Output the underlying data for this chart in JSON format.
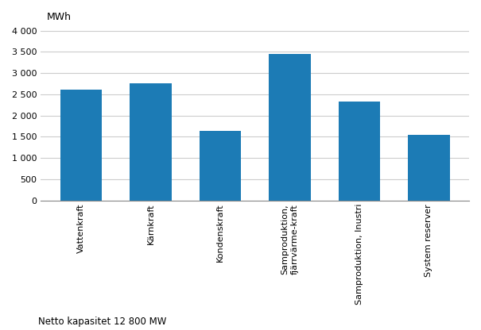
{
  "categories": [
    "Vattenkraft",
    "Kärnkraft",
    "Kondenskraft",
    "Samproduktion,\nfjärrvärme­kraft",
    "Samproduktion, Inustri",
    "System reserver"
  ],
  "values": [
    2620,
    2770,
    1640,
    3450,
    2330,
    1550
  ],
  "bar_color": "#1c7bb5",
  "ylabel": "MWh",
  "ylim": [
    0,
    4200
  ],
  "yticks": [
    0,
    500,
    1000,
    1500,
    2000,
    2500,
    3000,
    3500,
    4000
  ],
  "footnote": "Netto kapasitet 12 800 MW",
  "bar_width": 0.6,
  "figsize": [
    6.05,
    4.16
  ],
  "dpi": 100,
  "grid_color": "#cccccc",
  "spine_color": "#888888"
}
